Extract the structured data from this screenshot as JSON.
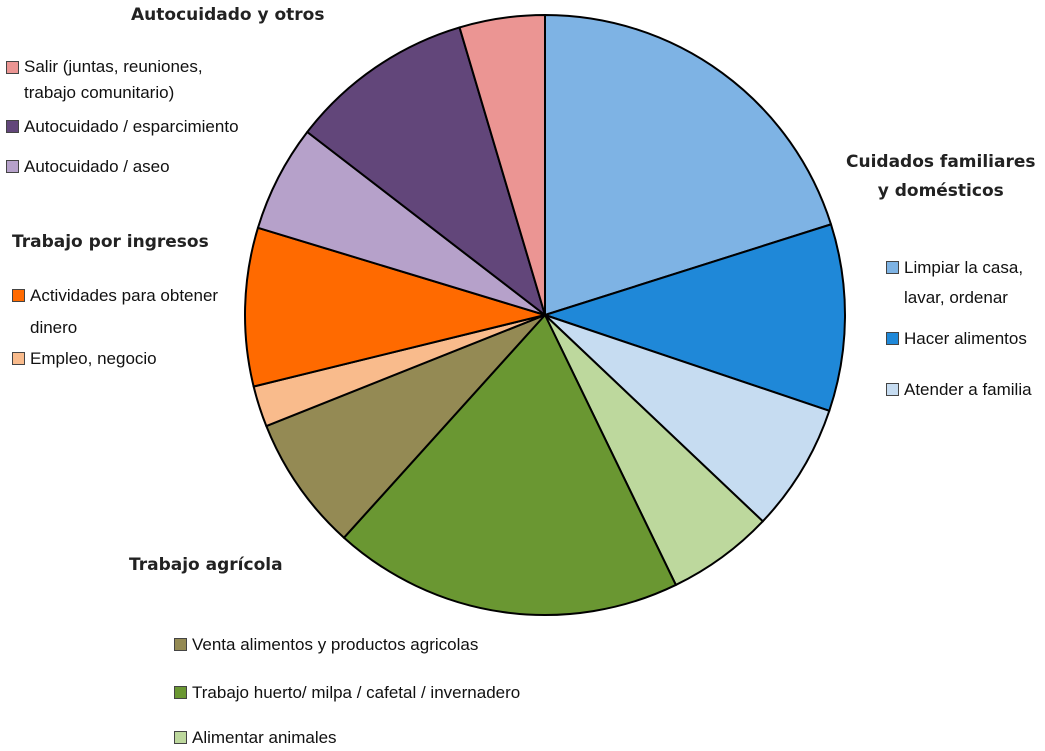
{
  "chart_data": {
    "type": "pie",
    "start": "top, clockwise",
    "groups": [
      {
        "title": "Cuidados familiares\ny domésticos",
        "slices": [
          "Limpiar la casa, lavar, ordenar",
          "Hacer alimentos",
          "Atender a familia"
        ]
      },
      {
        "title": "Trabajo agrícola",
        "slices": [
          "Alimentar animales",
          "Trabajo huerto/ milpa / cafetal / invernadero",
          "Venta alimentos y productos agricolas"
        ]
      },
      {
        "title": "Trabajo por ingresos",
        "slices": [
          "Empleo, negocio",
          "Actividades para obtener dinero"
        ]
      },
      {
        "title": "Autocuidado y otros",
        "slices": [
          "Autocuidado / aseo",
          "Autocuidado / esparcimiento",
          "Salir (juntas, reuniones, trabajo comunitario)"
        ]
      }
    ],
    "slices": [
      {
        "label": "Limpiar la casa, lavar, ordenar",
        "value": 21.0,
        "color": "#7EB3E4"
      },
      {
        "label": "Hacer alimentos",
        "value": 10.5,
        "color": "#1F88D8"
      },
      {
        "label": "Atender a familia",
        "value": 7.2,
        "color": "#C6DCF1"
      },
      {
        "label": "Alimentar animales",
        "value": 6.0,
        "color": "#BDD89D"
      },
      {
        "label": "Trabajo huerto/ milpa / cafetal / invernadero",
        "value": 19.7,
        "color": "#6A9732"
      },
      {
        "label": "Venta alimentos y productos agricolas",
        "value": 7.6,
        "color": "#948A54"
      },
      {
        "label": "Empleo, negocio",
        "value": 2.3,
        "color": "#F9BB8C"
      },
      {
        "label": "Actividades para obtener dinero",
        "value": 8.9,
        "color": "#FF6A00"
      },
      {
        "label": "Autocuidado / aseo",
        "value": 6.0,
        "color": "#B6A1CA"
      },
      {
        "label": "Autocuidado / esparcimiento",
        "value": 10.4,
        "color": "#62467A"
      },
      {
        "label": "Salir (juntas, reuniones, trabajo comunitario)",
        "value": 4.8,
        "color": "#EB9593"
      }
    ]
  },
  "legend": {
    "titles": {
      "autocuidado": "Autocuidado y otros",
      "cuidados": "Cuidados familiares\ny domésticos",
      "ingresos": "Trabajo por ingresos",
      "agricola": "Trabajo agrícola"
    },
    "items": {
      "salir": "Salir (juntas, reuniones,\ntrabajo comunitario)",
      "esparcimiento": "Autocuidado / esparcimiento",
      "aseo": "Autocuidado / aseo",
      "actividades": "Actividades para obtener\ndinero",
      "empleo": "Empleo, negocio",
      "limpiar": "Limpiar la casa,\nlavar, ordenar",
      "hacer": "Hacer alimentos",
      "atender": "Atender a familia",
      "venta": "Venta alimentos y productos agricolas",
      "huerto": "Trabajo huerto/ milpa / cafetal / invernadero",
      "animales": "Alimentar animales"
    },
    "colors": {
      "salir": "#EB9593",
      "esparcimiento": "#62467A",
      "aseo": "#B6A1CA",
      "actividades": "#FF6A00",
      "empleo": "#F9BB8C",
      "limpiar": "#7EB3E4",
      "hacer": "#1F88D8",
      "atender": "#C6DCF1",
      "venta": "#948A54",
      "huerto": "#6A9732",
      "animales": "#BDD89D"
    }
  }
}
